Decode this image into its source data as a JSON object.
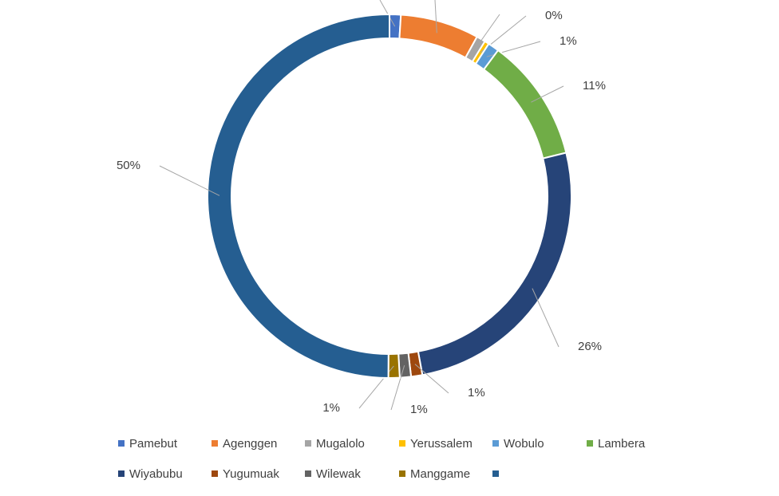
{
  "chart_data": {
    "type": "donut",
    "categories": [
      "Pamebut",
      "Agenggen",
      "Mugalolo",
      "Yerussalem",
      "Wobulo",
      "Lambera",
      "Wiyabubu",
      "Yugumuak",
      "Wilewak",
      "Manggame",
      null
    ],
    "values": [
      1,
      7,
      0.8,
      0.4,
      1,
      11,
      26,
      1,
      1,
      1,
      50
    ],
    "value_labels": [
      null,
      null,
      null,
      "0%",
      "1%",
      "11%",
      "26%",
      "1%",
      "1%",
      "1%",
      "50%"
    ],
    "colors": [
      "#4472c4",
      "#ed7d31",
      "#a5a5a5",
      "#ffc000",
      "#5b9bd5",
      "#70ad47",
      "#264478",
      "#9e480e",
      "#636363",
      "#997300",
      "#255e91"
    ],
    "legend": "bottom"
  }
}
